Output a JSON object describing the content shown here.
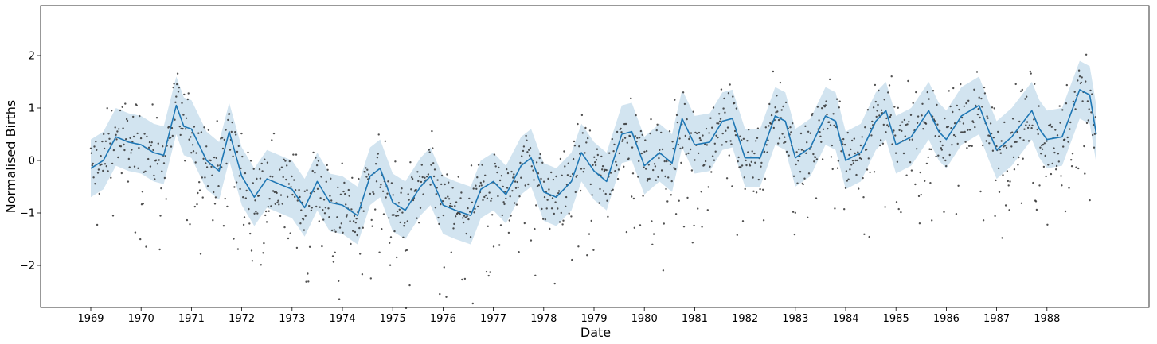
{
  "chart_data": {
    "type": "line",
    "title": "",
    "xlabel": "Date",
    "ylabel": "Normalised Births",
    "x_tick_labels": [
      "1969",
      "1970",
      "1971",
      "1972",
      "1973",
      "1974",
      "1975",
      "1976",
      "1977",
      "1978",
      "1979",
      "1980",
      "1981",
      "1982",
      "1983",
      "1984",
      "1985",
      "1986",
      "1987",
      "1988"
    ],
    "y_tick_labels": [
      "−2",
      "−1",
      "0",
      "1",
      "2"
    ],
    "xlim": [
      1968.0,
      1989.0
    ],
    "ylim": [
      -2.8,
      2.95
    ],
    "grid": false,
    "legend": "none",
    "colors": {
      "mean": "#1f77b4",
      "band": "#1f77b4",
      "points": "#333333"
    },
    "series": [
      {
        "kind": "mean",
        "x": [
          1969.0,
          1969.25,
          1969.5,
          1969.75,
          1970.0,
          1970.25,
          1970.45,
          1970.7,
          1970.85,
          1971.0,
          1971.3,
          1971.55,
          1971.75,
          1972.0,
          1972.25,
          1972.5,
          1972.75,
          1973.0,
          1973.25,
          1973.5,
          1973.75,
          1974.0,
          1974.3,
          1974.55,
          1974.75,
          1975.0,
          1975.25,
          1975.55,
          1975.75,
          1976.0,
          1976.25,
          1976.55,
          1976.75,
          1977.0,
          1977.25,
          1977.55,
          1977.75,
          1978.0,
          1978.25,
          1978.55,
          1978.75,
          1979.0,
          1979.25,
          1979.55,
          1979.75,
          1980.0,
          1980.3,
          1980.55,
          1980.75,
          1981.0,
          1981.3,
          1981.55,
          1981.75,
          1982.0,
          1982.3,
          1982.6,
          1982.8,
          1983.0,
          1983.3,
          1983.6,
          1983.8,
          1984.0,
          1984.3,
          1984.6,
          1984.8,
          1985.0,
          1985.3,
          1985.65,
          1985.85,
          1986.0,
          1986.3,
          1986.65,
          1986.85,
          1987.0,
          1987.3,
          1987.7,
          1987.85,
          1988.0,
          1988.3,
          1988.65,
          1988.85,
          1988.98
        ],
        "y": [
          -0.15,
          0.0,
          0.45,
          0.35,
          0.3,
          0.15,
          0.1,
          1.05,
          0.65,
          0.6,
          0.0,
          -0.2,
          0.55,
          -0.3,
          -0.7,
          -0.35,
          -0.45,
          -0.55,
          -0.9,
          -0.4,
          -0.8,
          -0.85,
          -1.05,
          -0.3,
          -0.15,
          -0.8,
          -0.95,
          -0.5,
          -0.3,
          -0.85,
          -0.95,
          -1.05,
          -0.55,
          -0.4,
          -0.65,
          -0.1,
          0.05,
          -0.6,
          -0.7,
          -0.4,
          0.15,
          -0.2,
          -0.4,
          0.5,
          0.55,
          -0.1,
          0.15,
          -0.05,
          0.8,
          0.3,
          0.35,
          0.75,
          0.8,
          0.05,
          0.05,
          0.85,
          0.75,
          0.05,
          0.25,
          0.85,
          0.75,
          0.0,
          0.15,
          0.75,
          0.95,
          0.3,
          0.45,
          0.95,
          0.55,
          0.4,
          0.85,
          1.05,
          0.55,
          0.2,
          0.45,
          0.95,
          0.6,
          0.4,
          0.45,
          1.35,
          1.25,
          0.5
        ],
        "band_halfwidth": 0.55
      }
    ]
  }
}
